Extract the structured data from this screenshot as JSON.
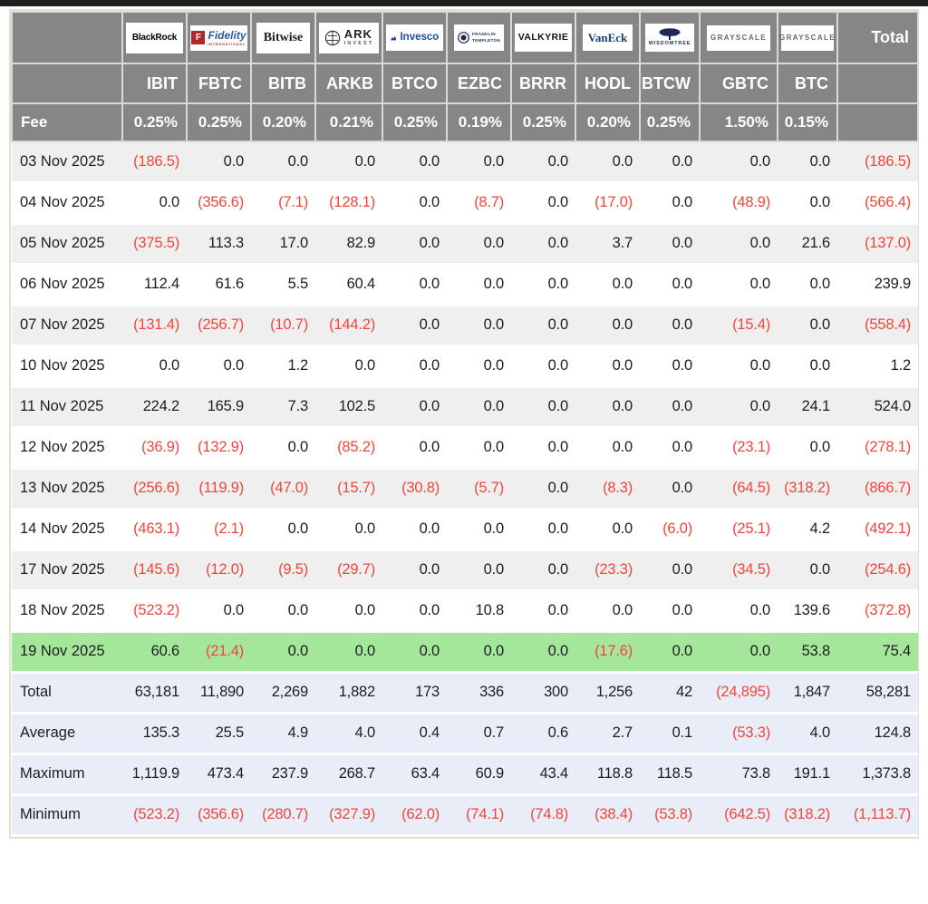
{
  "colors": {
    "header_bg": "#868686",
    "header_text": "#ffffff",
    "grid_line": "#d9d9d9",
    "row_alt": "#efefef",
    "row_base": "#ffffff",
    "highlight_row": "#a4e79b",
    "summary_bg": "#e9edf7",
    "negative": "#f2453a",
    "text": "#1d1d1f",
    "frame_border": "#e6dfcd",
    "top_bar": "#1f1f1f"
  },
  "logos": {
    "blackrock": {
      "text": "BlackRock"
    },
    "fidelity": {
      "f": "F",
      "name": "Fidelity",
      "sub": "INTERNATIONAL"
    },
    "bitwise": {
      "text": "Bitwise"
    },
    "ark": {
      "line1": "ARK",
      "line2": "INVEST"
    },
    "invesco": {
      "text": "Invesco"
    },
    "franklin": {
      "line1": "FRANKLIN",
      "line2": "TEMPLETON"
    },
    "valkyrie": {
      "text": "VALKYRIE"
    },
    "vaneck": {
      "text": "VanEck"
    },
    "wisdomtree": {
      "text": "WISDOMTREE"
    },
    "grayscale": {
      "text": "GRAYSCALE"
    }
  },
  "chart_data": {
    "type": "table",
    "total_column_label": "Total",
    "fee_row": {
      "label": "Fee",
      "values": [
        "0.25%",
        "0.25%",
        "0.20%",
        "0.21%",
        "0.25%",
        "0.19%",
        "0.25%",
        "0.20%",
        "0.25%",
        "1.50%",
        "0.15%"
      ]
    },
    "columns": [
      {
        "provider": "BlackRock",
        "logo": "blackrock",
        "ticker": "IBIT",
        "fee": "0.25%"
      },
      {
        "provider": "Fidelity",
        "logo": "fidelity",
        "ticker": "FBTC",
        "fee": "0.25%"
      },
      {
        "provider": "Bitwise",
        "logo": "bitwise",
        "ticker": "BITB",
        "fee": "0.20%"
      },
      {
        "provider": "ARK Invest",
        "logo": "ark",
        "ticker": "ARKB",
        "fee": "0.21%"
      },
      {
        "provider": "Invesco",
        "logo": "invesco",
        "ticker": "BTCO",
        "fee": "0.25%"
      },
      {
        "provider": "Franklin Templeton",
        "logo": "franklin",
        "ticker": "EZBC",
        "fee": "0.19%"
      },
      {
        "provider": "Valkyrie",
        "logo": "valkyrie",
        "ticker": "BRRR",
        "fee": "0.25%"
      },
      {
        "provider": "VanEck",
        "logo": "vaneck",
        "ticker": "HODL",
        "fee": "0.20%"
      },
      {
        "provider": "WisdomTree",
        "logo": "wisdomtree",
        "ticker": "BTCW",
        "fee": "0.25%"
      },
      {
        "provider": "Grayscale",
        "logo": "grayscale",
        "ticker": "GBTC",
        "fee": "1.50%"
      },
      {
        "provider": "Grayscale",
        "logo": "grayscale",
        "ticker": "BTC",
        "fee": "0.15%"
      }
    ],
    "rows": [
      {
        "date": "03 Nov 2025",
        "values": [
          "(186.5)",
          "0.0",
          "0.0",
          "0.0",
          "0.0",
          "0.0",
          "0.0",
          "0.0",
          "0.0",
          "0.0",
          "0.0"
        ],
        "total": "(186.5)",
        "highlighted": false
      },
      {
        "date": "04 Nov 2025",
        "values": [
          "0.0",
          "(356.6)",
          "(7.1)",
          "(128.1)",
          "0.0",
          "(8.7)",
          "0.0",
          "(17.0)",
          "0.0",
          "(48.9)",
          "0.0"
        ],
        "total": "(566.4)",
        "highlighted": false
      },
      {
        "date": "05 Nov 2025",
        "values": [
          "(375.5)",
          "113.3",
          "17.0",
          "82.9",
          "0.0",
          "0.0",
          "0.0",
          "3.7",
          "0.0",
          "0.0",
          "21.6"
        ],
        "total": "(137.0)",
        "highlighted": false
      },
      {
        "date": "06 Nov 2025",
        "values": [
          "112.4",
          "61.6",
          "5.5",
          "60.4",
          "0.0",
          "0.0",
          "0.0",
          "0.0",
          "0.0",
          "0.0",
          "0.0"
        ],
        "total": "239.9",
        "highlighted": false
      },
      {
        "date": "07 Nov 2025",
        "values": [
          "(131.4)",
          "(256.7)",
          "(10.7)",
          "(144.2)",
          "0.0",
          "0.0",
          "0.0",
          "0.0",
          "0.0",
          "(15.4)",
          "0.0"
        ],
        "total": "(558.4)",
        "highlighted": false
      },
      {
        "date": "10 Nov 2025",
        "values": [
          "0.0",
          "0.0",
          "1.2",
          "0.0",
          "0.0",
          "0.0",
          "0.0",
          "0.0",
          "0.0",
          "0.0",
          "0.0"
        ],
        "total": "1.2",
        "highlighted": false
      },
      {
        "date": "11 Nov 2025",
        "values": [
          "224.2",
          "165.9",
          "7.3",
          "102.5",
          "0.0",
          "0.0",
          "0.0",
          "0.0",
          "0.0",
          "0.0",
          "24.1"
        ],
        "total": "524.0",
        "highlighted": false
      },
      {
        "date": "12 Nov 2025",
        "values": [
          "(36.9)",
          "(132.9)",
          "0.0",
          "(85.2)",
          "0.0",
          "0.0",
          "0.0",
          "0.0",
          "0.0",
          "(23.1)",
          "0.0"
        ],
        "total": "(278.1)",
        "highlighted": false
      },
      {
        "date": "13 Nov 2025",
        "values": [
          "(256.6)",
          "(119.9)",
          "(47.0)",
          "(15.7)",
          "(30.8)",
          "(5.7)",
          "0.0",
          "(8.3)",
          "0.0",
          "(64.5)",
          "(318.2)"
        ],
        "total": "(866.7)",
        "highlighted": false
      },
      {
        "date": "14 Nov 2025",
        "values": [
          "(463.1)",
          "(2.1)",
          "0.0",
          "0.0",
          "0.0",
          "0.0",
          "0.0",
          "0.0",
          "(6.0)",
          "(25.1)",
          "4.2"
        ],
        "total": "(492.1)",
        "highlighted": false
      },
      {
        "date": "17 Nov 2025",
        "values": [
          "(145.6)",
          "(12.0)",
          "(9.5)",
          "(29.7)",
          "0.0",
          "0.0",
          "0.0",
          "(23.3)",
          "0.0",
          "(34.5)",
          "0.0"
        ],
        "total": "(254.6)",
        "highlighted": false
      },
      {
        "date": "18 Nov 2025",
        "values": [
          "(523.2)",
          "0.0",
          "0.0",
          "0.0",
          "0.0",
          "10.8",
          "0.0",
          "0.0",
          "0.0",
          "0.0",
          "139.6"
        ],
        "total": "(372.8)",
        "highlighted": false
      },
      {
        "date": "19 Nov 2025",
        "values": [
          "60.6",
          "(21.4)",
          "0.0",
          "0.0",
          "0.0",
          "0.0",
          "0.0",
          "(17.6)",
          "0.0",
          "0.0",
          "53.8"
        ],
        "total": "75.4",
        "highlighted": true
      }
    ],
    "summary_rows": [
      {
        "label": "Total",
        "values": [
          "63,181",
          "11,890",
          "2,269",
          "1,882",
          "173",
          "336",
          "300",
          "1,256",
          "42",
          "(24,895)",
          "1,847"
        ],
        "total": "58,281"
      },
      {
        "label": "Average",
        "values": [
          "135.3",
          "25.5",
          "4.9",
          "4.0",
          "0.4",
          "0.7",
          "0.6",
          "2.7",
          "0.1",
          "(53.3)",
          "4.0"
        ],
        "total": "124.8"
      },
      {
        "label": "Maximum",
        "values": [
          "1,119.9",
          "473.4",
          "237.9",
          "268.7",
          "63.4",
          "60.9",
          "43.4",
          "118.8",
          "118.5",
          "73.8",
          "191.1"
        ],
        "total": "1,373.8"
      },
      {
        "label": "Minimum",
        "values": [
          "(523.2)",
          "(356.6)",
          "(280.7)",
          "(327.9)",
          "(62.0)",
          "(74.1)",
          "(74.8)",
          "(38.4)",
          "(53.8)",
          "(642.5)",
          "(318.2)"
        ],
        "total": "(1,113.7)"
      }
    ],
    "notation": "negative values shown in parentheses and red"
  }
}
